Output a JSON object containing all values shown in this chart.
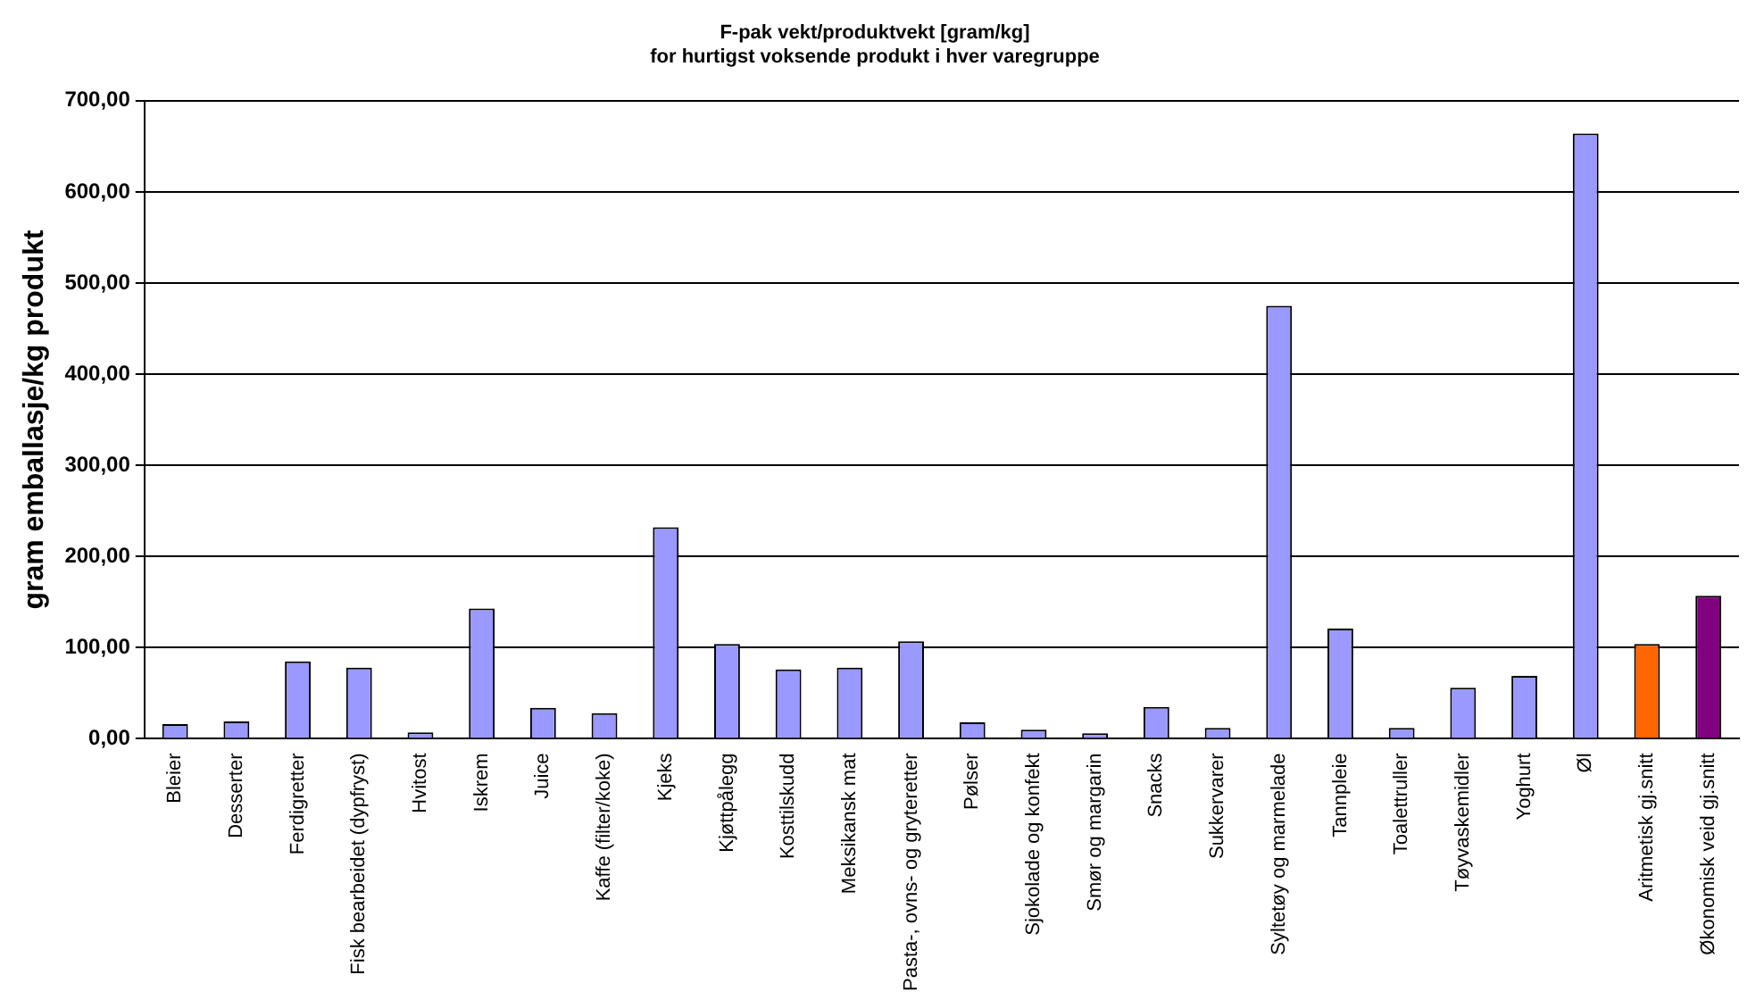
{
  "chart_data": {
    "type": "bar",
    "title": "F-pak vekt/produktvekt [gram/kg]\nfor hurtigst voksende produkt i hver varegruppe",
    "ylabel": "gram emballasje/kg produkt",
    "categories": [
      "Bleier",
      "Desserter",
      "Ferdigretter",
      "Fisk bearbeidet (dypfryst)",
      "Hvitost",
      "Iskrem",
      "Juice",
      "Kaffe (filter/koke)",
      "Kjeks",
      "Kjøttpålegg",
      "Kosttilskudd",
      "Meksikansk mat",
      "Pasta-, ovns- og gryteretter",
      "Pølser",
      "Sjokolade og konfekt",
      "Smør og margarin",
      "Snacks",
      "Sukkervarer",
      "Syltetøy og marmelade",
      "Tannpleie",
      "Toalettruller",
      "Tøyvaskemidler",
      "Yoghurt",
      "Øl",
      "Aritmetisk gj.snitt",
      "Økonomisk veid gj.snitt"
    ],
    "values": [
      16,
      19,
      85,
      78,
      7,
      143,
      34,
      28,
      232,
      104,
      76,
      78,
      107,
      18,
      10,
      6,
      35,
      12,
      475,
      121,
      12,
      56,
      69,
      664,
      104,
      157
    ],
    "colors": [
      "#9999ff",
      "#9999ff",
      "#9999ff",
      "#9999ff",
      "#9999ff",
      "#9999ff",
      "#9999ff",
      "#9999ff",
      "#9999ff",
      "#9999ff",
      "#9999ff",
      "#9999ff",
      "#9999ff",
      "#9999ff",
      "#9999ff",
      "#9999ff",
      "#9999ff",
      "#9999ff",
      "#9999ff",
      "#9999ff",
      "#9999ff",
      "#9999ff",
      "#9999ff",
      "#9999ff",
      "#ff6600",
      "#800080"
    ],
    "ylim": [
      0,
      700
    ],
    "yticks": [
      {
        "value": 0,
        "label": "0,00"
      },
      {
        "value": 100,
        "label": "100,00"
      },
      {
        "value": 200,
        "label": "200,00"
      },
      {
        "value": 300,
        "label": "300,00"
      },
      {
        "value": 400,
        "label": "400,00"
      },
      {
        "value": 500,
        "label": "500,00"
      },
      {
        "value": 600,
        "label": "600,00"
      },
      {
        "value": 700,
        "label": "700,00"
      }
    ],
    "grid": "y",
    "legend": false
  }
}
